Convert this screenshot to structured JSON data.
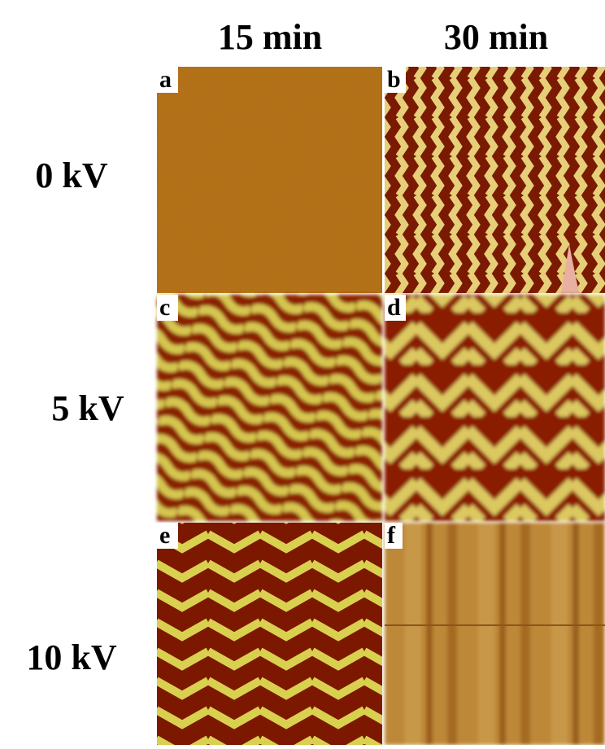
{
  "column_headers": [
    "15 min",
    "30 min"
  ],
  "row_labels": [
    "0 kV",
    "5 kV",
    "10 kV"
  ],
  "panels": [
    {
      "label": "a"
    },
    {
      "label": "b"
    },
    {
      "label": "c"
    },
    {
      "label": "d"
    },
    {
      "label": "e"
    },
    {
      "label": "f"
    }
  ]
}
